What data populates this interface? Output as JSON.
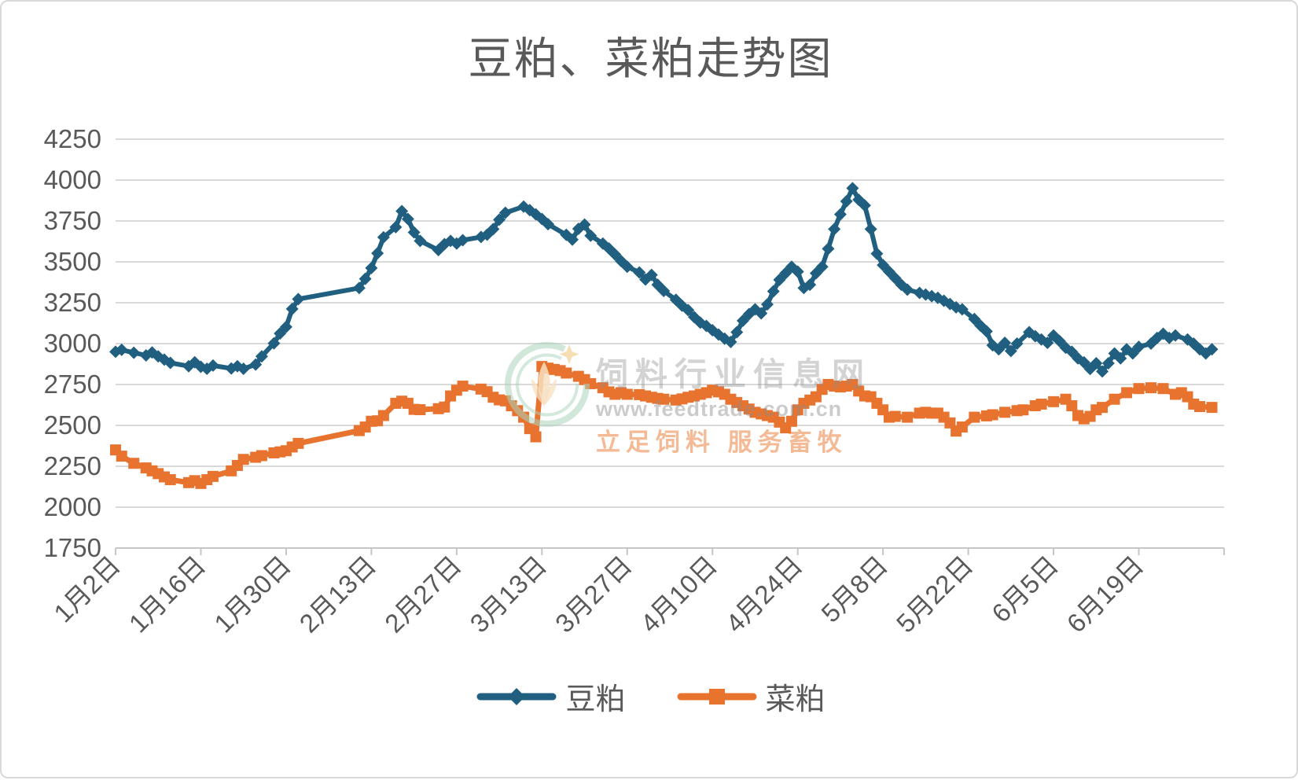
{
  "title": "豆粕、菜粕走势图",
  "watermark": {
    "site_name": "饲料行业信息网",
    "url": "www.feedtrade.com.cn",
    "slogan": "立足饲料  服务畜牧"
  },
  "colors": {
    "soybean_meal": "#205F80",
    "rapeseed_meal": "#E8732F",
    "gridline": "#D9D9D9",
    "axis_line": "#C6C6C6",
    "axis_text": "#595959",
    "title_text": "#595959"
  },
  "chart_data": {
    "type": "line",
    "title": "豆粕、菜粕走势图",
    "grid": true,
    "legend_position": "bottom",
    "y_axis": {
      "min": 1750,
      "max": 4250,
      "step": 250,
      "ticks": [
        1750,
        2000,
        2250,
        2500,
        2750,
        3000,
        3250,
        3500,
        3750,
        4000,
        4250
      ]
    },
    "x_axis": {
      "unit": "days_after_1月2日",
      "domain": [
        0,
        182
      ],
      "tick_interval_days": 14,
      "tick_labels": [
        {
          "day": 0,
          "label": "1月2日"
        },
        {
          "day": 14,
          "label": "1月16日"
        },
        {
          "day": 28,
          "label": "1月30日"
        },
        {
          "day": 42,
          "label": "2月13日"
        },
        {
          "day": 56,
          "label": "2月27日"
        },
        {
          "day": 70,
          "label": "3月13日"
        },
        {
          "day": 84,
          "label": "3月27日"
        },
        {
          "day": 98,
          "label": "4月10日"
        },
        {
          "day": 112,
          "label": "4月24日"
        },
        {
          "day": 126,
          "label": "5月8日"
        },
        {
          "day": 140,
          "label": "5月22日"
        },
        {
          "day": 154,
          "label": "6月5日"
        },
        {
          "day": 168,
          "label": "6月19日"
        }
      ]
    },
    "series": [
      {
        "name": "豆粕",
        "color": "#205F80",
        "marker": "diamond",
        "points": [
          [
            0,
            2950
          ],
          [
            1,
            2962
          ],
          [
            3,
            2944
          ],
          [
            5,
            2928
          ],
          [
            6,
            2946
          ],
          [
            7,
            2922
          ],
          [
            8,
            2902
          ],
          [
            9,
            2882
          ],
          [
            12,
            2862
          ],
          [
            13,
            2886
          ],
          [
            14,
            2858
          ],
          [
            15,
            2846
          ],
          [
            16,
            2866
          ],
          [
            19,
            2848
          ],
          [
            20,
            2862
          ],
          [
            21,
            2846
          ],
          [
            23,
            2872
          ],
          [
            24,
            2922
          ],
          [
            26,
            3002
          ],
          [
            27,
            3062
          ],
          [
            28,
            3102
          ],
          [
            29,
            3212
          ],
          [
            30,
            3272
          ],
          [
            40,
            3340
          ],
          [
            41,
            3396
          ],
          [
            42,
            3462
          ],
          [
            43,
            3552
          ],
          [
            44,
            3650
          ],
          [
            46,
            3712
          ],
          [
            47,
            3810
          ],
          [
            48,
            3762
          ],
          [
            49,
            3680
          ],
          [
            50,
            3628
          ],
          [
            53,
            3572
          ],
          [
            54,
            3608
          ],
          [
            55,
            3628
          ],
          [
            56,
            3612
          ],
          [
            57,
            3632
          ],
          [
            60,
            3652
          ],
          [
            61,
            3666
          ],
          [
            62,
            3700
          ],
          [
            63,
            3758
          ],
          [
            64,
            3800
          ],
          [
            67,
            3838
          ],
          [
            68,
            3816
          ],
          [
            69,
            3790
          ],
          [
            70,
            3762
          ],
          [
            71,
            3730
          ],
          [
            74,
            3665
          ],
          [
            75,
            3636
          ],
          [
            76,
            3702
          ],
          [
            77,
            3728
          ],
          [
            78,
            3660
          ],
          [
            80,
            3612
          ],
          [
            81,
            3582
          ],
          [
            82,
            3545
          ],
          [
            83,
            3505
          ],
          [
            84,
            3470
          ],
          [
            86,
            3435
          ],
          [
            87,
            3392
          ],
          [
            88,
            3420
          ],
          [
            89,
            3360
          ],
          [
            90,
            3322
          ],
          [
            92,
            3268
          ],
          [
            93,
            3232
          ],
          [
            94,
            3205
          ],
          [
            95,
            3162
          ],
          [
            96,
            3128
          ],
          [
            97,
            3108
          ],
          [
            98,
            3082
          ],
          [
            99,
            3055
          ],
          [
            100,
            3030
          ],
          [
            101,
            3010
          ],
          [
            102,
            3070
          ],
          [
            103,
            3140
          ],
          [
            104,
            3180
          ],
          [
            105,
            3210
          ],
          [
            106,
            3185
          ],
          [
            107,
            3240
          ],
          [
            108,
            3320
          ],
          [
            109,
            3390
          ],
          [
            110,
            3430
          ],
          [
            111,
            3470
          ],
          [
            112,
            3440
          ],
          [
            113,
            3340
          ],
          [
            114,
            3360
          ],
          [
            115,
            3430
          ],
          [
            116,
            3470
          ],
          [
            117,
            3580
          ],
          [
            118,
            3700
          ],
          [
            119,
            3790
          ],
          [
            120,
            3870
          ],
          [
            121,
            3950
          ],
          [
            122,
            3880
          ],
          [
            123,
            3845
          ],
          [
            124,
            3700
          ],
          [
            125,
            3550
          ],
          [
            126,
            3480
          ],
          [
            127,
            3440
          ],
          [
            128,
            3400
          ],
          [
            129,
            3360
          ],
          [
            130,
            3330
          ],
          [
            132,
            3310
          ],
          [
            133,
            3300
          ],
          [
            134,
            3290
          ],
          [
            135,
            3280
          ],
          [
            136,
            3262
          ],
          [
            137,
            3242
          ],
          [
            138,
            3222
          ],
          [
            139,
            3210
          ],
          [
            141,
            3150
          ],
          [
            142,
            3110
          ],
          [
            143,
            3075
          ],
          [
            144,
            2990
          ],
          [
            145,
            2965
          ],
          [
            146,
            3005
          ],
          [
            147,
            2955
          ],
          [
            148,
            3000
          ],
          [
            150,
            3070
          ],
          [
            151,
            3045
          ],
          [
            152,
            3025
          ],
          [
            153,
            3005
          ],
          [
            154,
            3050
          ],
          [
            155,
            3015
          ],
          [
            156,
            2975
          ],
          [
            157,
            2950
          ],
          [
            158,
            2910
          ],
          [
            159,
            2885
          ],
          [
            160,
            2845
          ],
          [
            161,
            2880
          ],
          [
            162,
            2830
          ],
          [
            163,
            2880
          ],
          [
            164,
            2940
          ],
          [
            165,
            2910
          ],
          [
            166,
            2965
          ],
          [
            167,
            2940
          ],
          [
            168,
            2980
          ],
          [
            170,
            3000
          ],
          [
            171,
            3035
          ],
          [
            172,
            3060
          ],
          [
            173,
            3035
          ],
          [
            174,
            3050
          ],
          [
            176,
            3025
          ],
          [
            177,
            3000
          ],
          [
            178,
            2965
          ],
          [
            179,
            2940
          ],
          [
            180,
            2965
          ]
        ]
      },
      {
        "name": "菜粕",
        "color": "#E8732F",
        "marker": "square",
        "points": [
          [
            0,
            2350
          ],
          [
            1,
            2312
          ],
          [
            3,
            2268
          ],
          [
            5,
            2240
          ],
          [
            6,
            2222
          ],
          [
            7,
            2205
          ],
          [
            8,
            2185
          ],
          [
            9,
            2168
          ],
          [
            12,
            2150
          ],
          [
            13,
            2162
          ],
          [
            14,
            2145
          ],
          [
            15,
            2168
          ],
          [
            16,
            2188
          ],
          [
            19,
            2222
          ],
          [
            20,
            2255
          ],
          [
            21,
            2292
          ],
          [
            23,
            2305
          ],
          [
            24,
            2315
          ],
          [
            26,
            2332
          ],
          [
            27,
            2338
          ],
          [
            28,
            2345
          ],
          [
            29,
            2368
          ],
          [
            30,
            2390
          ],
          [
            40,
            2468
          ],
          [
            41,
            2490
          ],
          [
            42,
            2525
          ],
          [
            43,
            2528
          ],
          [
            44,
            2560
          ],
          [
            46,
            2635
          ],
          [
            47,
            2648
          ],
          [
            48,
            2635
          ],
          [
            49,
            2598
          ],
          [
            50,
            2596
          ],
          [
            53,
            2602
          ],
          [
            54,
            2612
          ],
          [
            55,
            2680
          ],
          [
            56,
            2715
          ],
          [
            57,
            2740
          ],
          [
            60,
            2722
          ],
          [
            61,
            2706
          ],
          [
            62,
            2672
          ],
          [
            63,
            2656
          ],
          [
            64,
            2650
          ],
          [
            65,
            2620
          ],
          [
            66,
            2590
          ],
          [
            67,
            2550
          ],
          [
            68,
            2480
          ],
          [
            69,
            2430
          ],
          [
            70,
            2860
          ],
          [
            71,
            2850
          ],
          [
            72,
            2842
          ],
          [
            73,
            2835
          ],
          [
            74,
            2820
          ],
          [
            76,
            2800
          ],
          [
            77,
            2780
          ],
          [
            78,
            2755
          ],
          [
            80,
            2730
          ],
          [
            81,
            2705
          ],
          [
            82,
            2690
          ],
          [
            83,
            2700
          ],
          [
            84,
            2690
          ],
          [
            86,
            2688
          ],
          [
            87,
            2680
          ],
          [
            88,
            2672
          ],
          [
            89,
            2665
          ],
          [
            90,
            2660
          ],
          [
            92,
            2655
          ],
          [
            93,
            2662
          ],
          [
            94,
            2672
          ],
          [
            95,
            2680
          ],
          [
            96,
            2690
          ],
          [
            97,
            2700
          ],
          [
            98,
            2715
          ],
          [
            99,
            2705
          ],
          [
            100,
            2690
          ],
          [
            101,
            2660
          ],
          [
            102,
            2640
          ],
          [
            103,
            2620
          ],
          [
            104,
            2600
          ],
          [
            105,
            2580
          ],
          [
            106,
            2570
          ],
          [
            107,
            2560
          ],
          [
            108,
            2550
          ],
          [
            109,
            2520
          ],
          [
            110,
            2485
          ],
          [
            111,
            2525
          ],
          [
            112,
            2595
          ],
          [
            113,
            2635
          ],
          [
            114,
            2655
          ],
          [
            115,
            2675
          ],
          [
            116,
            2720
          ],
          [
            117,
            2750
          ],
          [
            118,
            2740
          ],
          [
            119,
            2735
          ],
          [
            120,
            2740
          ],
          [
            121,
            2750
          ],
          [
            122,
            2710
          ],
          [
            123,
            2680
          ],
          [
            124,
            2675
          ],
          [
            125,
            2635
          ],
          [
            126,
            2595
          ],
          [
            127,
            2550
          ],
          [
            128,
            2555
          ],
          [
            130,
            2550
          ],
          [
            132,
            2575
          ],
          [
            133,
            2580
          ],
          [
            134,
            2575
          ],
          [
            135,
            2575
          ],
          [
            136,
            2550
          ],
          [
            137,
            2515
          ],
          [
            138,
            2465
          ],
          [
            139,
            2490
          ],
          [
            141,
            2550
          ],
          [
            143,
            2558
          ],
          [
            144,
            2565
          ],
          [
            146,
            2580
          ],
          [
            148,
            2590
          ],
          [
            149,
            2595
          ],
          [
            151,
            2620
          ],
          [
            152,
            2630
          ],
          [
            154,
            2645
          ],
          [
            156,
            2660
          ],
          [
            157,
            2620
          ],
          [
            158,
            2560
          ],
          [
            159,
            2540
          ],
          [
            160,
            2555
          ],
          [
            161,
            2595
          ],
          [
            162,
            2610
          ],
          [
            164,
            2660
          ],
          [
            166,
            2700
          ],
          [
            168,
            2725
          ],
          [
            170,
            2730
          ],
          [
            172,
            2725
          ],
          [
            174,
            2690
          ],
          [
            175,
            2700
          ],
          [
            176,
            2675
          ],
          [
            177,
            2630
          ],
          [
            178,
            2615
          ],
          [
            180,
            2610
          ]
        ]
      }
    ]
  }
}
